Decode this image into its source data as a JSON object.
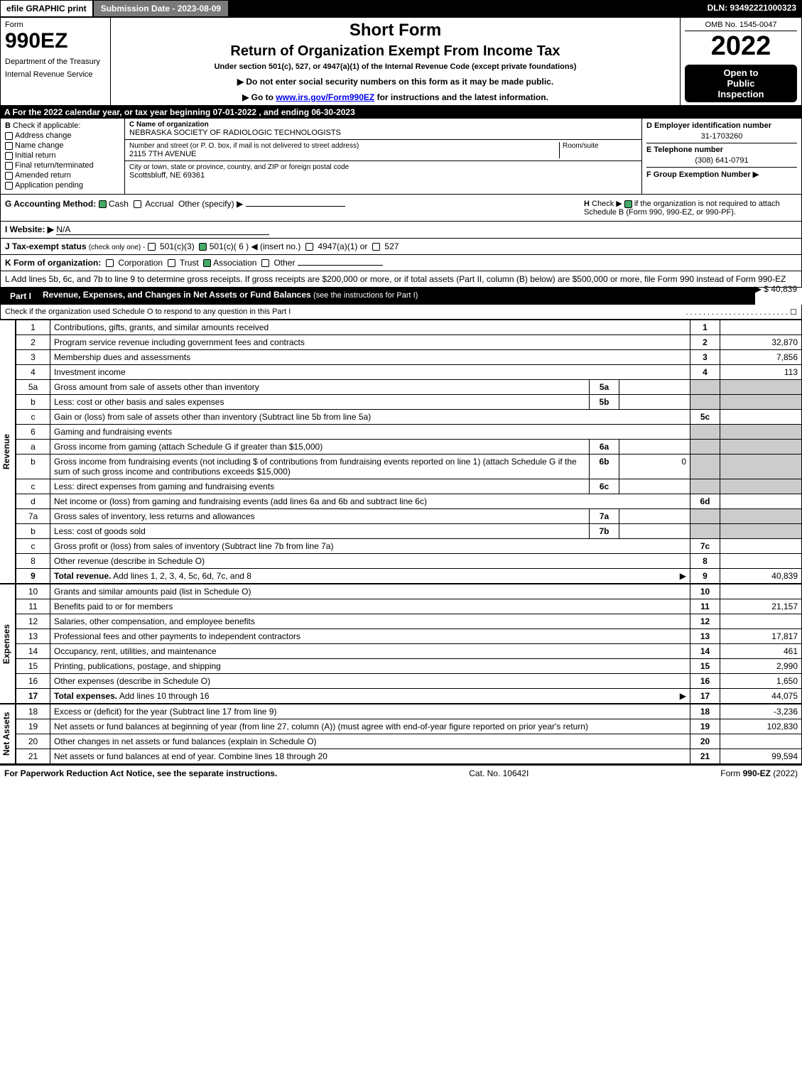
{
  "topbar": {
    "efile": "efile GRAPHIC print",
    "submission": "Submission Date - 2023-08-09",
    "dln": "DLN: 93492221000323"
  },
  "header": {
    "form_label": "Form",
    "form_number": "990EZ",
    "dept1": "Department of the Treasury",
    "dept2": "Internal Revenue Service",
    "short_form": "Short Form",
    "title": "Return of Organization Exempt From Income Tax",
    "under": "Under section 501(c), 527, or 4947(a)(1) of the Internal Revenue Code (except private foundations)",
    "instr1": "▶ Do not enter social security numbers on this form as it may be made public.",
    "instr2_pre": "▶ Go to ",
    "instr2_link": "www.irs.gov/Form990EZ",
    "instr2_post": " for instructions and the latest information.",
    "omb": "OMB No. 1545-0047",
    "year": "2022",
    "open1": "Open to",
    "open2": "Public",
    "open3": "Inspection"
  },
  "section_a": "A  For the 2022 calendar year, or tax year beginning 07-01-2022 , and ending 06-30-2023",
  "col_b": {
    "title": "B",
    "subtitle": "Check if applicable:",
    "items": [
      "Address change",
      "Name change",
      "Initial return",
      "Final return/terminated",
      "Amended return",
      "Application pending"
    ]
  },
  "col_c": {
    "c_label": "C Name of organization",
    "c_name": "NEBRASKA SOCIETY OF RADIOLOGIC TECHNOLOGISTS",
    "street_label": "Number and street (or P. O. box, if mail is not delivered to street address)",
    "street": "2115 7TH AVENUE",
    "room_label": "Room/suite",
    "city_label": "City or town, state or province, country, and ZIP or foreign postal code",
    "city": "Scottsbluff, NE  69361"
  },
  "col_d": {
    "d_label": "D Employer identification number",
    "ein": "31-1703260",
    "e_label": "E Telephone number",
    "phone": "(308) 641-0791",
    "f_label": "F Group Exemption Number ▶"
  },
  "row_g": {
    "g_label": "G Accounting Method:",
    "cash": "Cash",
    "accrual": "Accrual",
    "other": "Other (specify) ▶",
    "h_label": "H",
    "h_text1": "Check ▶",
    "h_text2": "if the organization is not required to attach Schedule B (Form 990, 990-EZ, or 990-PF)."
  },
  "row_i": {
    "label": "I Website: ▶",
    "value": "N/A"
  },
  "row_j": {
    "label": "J Tax-exempt status",
    "sub": "(check only one) -",
    "opt1": "501(c)(3)",
    "opt2": "501(c)( 6 ) ◀ (insert no.)",
    "opt3": "4947(a)(1) or",
    "opt4": "527"
  },
  "row_k": {
    "label": "K Form of organization:",
    "opts": [
      "Corporation",
      "Trust",
      "Association",
      "Other"
    ]
  },
  "row_l": {
    "text": "L Add lines 5b, 6c, and 7b to line 9 to determine gross receipts. If gross receipts are $200,000 or more, or if total assets (Part II, column (B) below) are $500,000 or more, file Form 990 instead of Form 990-EZ",
    "amount": "▶ $ 40,839"
  },
  "part1": {
    "label": "Part I",
    "title": "Revenue, Expenses, and Changes in Net Assets or Fund Balances",
    "sub": "(see the instructions for Part I)",
    "check": "Check if the organization used Schedule O to respond to any question in this Part I",
    "check_end": ". . . . . . . . . . . . . . . . . . . . . . . . ☐"
  },
  "revenue": {
    "side": "Revenue",
    "rows": [
      {
        "n": "1",
        "d": "Contributions, gifts, grants, and similar amounts received",
        "r": "1",
        "v": ""
      },
      {
        "n": "2",
        "d": "Program service revenue including government fees and contracts",
        "r": "2",
        "v": "32,870"
      },
      {
        "n": "3",
        "d": "Membership dues and assessments",
        "r": "3",
        "v": "7,856"
      },
      {
        "n": "4",
        "d": "Investment income",
        "r": "4",
        "v": "113"
      },
      {
        "n": "5a",
        "d": "Gross amount from sale of assets other than inventory",
        "sub": "5a",
        "sv": ""
      },
      {
        "n": "b",
        "d": "Less: cost or other basis and sales expenses",
        "sub": "5b",
        "sv": ""
      },
      {
        "n": "c",
        "d": "Gain or (loss) from sale of assets other than inventory (Subtract line 5b from line 5a)",
        "r": "5c",
        "v": ""
      },
      {
        "n": "6",
        "d": "Gaming and fundraising events"
      },
      {
        "n": "a",
        "d": "Gross income from gaming (attach Schedule G if greater than $15,000)",
        "sub": "6a",
        "sv": ""
      },
      {
        "n": "b",
        "d": "Gross income from fundraising events (not including $                     of contributions from fundraising events reported on line 1) (attach Schedule G if the sum of such gross income and contributions exceeds $15,000)",
        "sub": "6b",
        "sv": "0"
      },
      {
        "n": "c",
        "d": "Less: direct expenses from gaming and fundraising events",
        "sub": "6c",
        "sv": ""
      },
      {
        "n": "d",
        "d": "Net income or (loss) from gaming and fundraising events (add lines 6a and 6b and subtract line 6c)",
        "r": "6d",
        "v": ""
      },
      {
        "n": "7a",
        "d": "Gross sales of inventory, less returns and allowances",
        "sub": "7a",
        "sv": ""
      },
      {
        "n": "b",
        "d": "Less: cost of goods sold",
        "sub": "7b",
        "sv": ""
      },
      {
        "n": "c",
        "d": "Gross profit or (loss) from sales of inventory (Subtract line 7b from line 7a)",
        "r": "7c",
        "v": ""
      },
      {
        "n": "8",
        "d": "Other revenue (describe in Schedule O)",
        "r": "8",
        "v": ""
      },
      {
        "n": "9",
        "d": "Total revenue. Add lines 1, 2, 3, 4, 5c, 6d, 7c, and 8",
        "r": "9",
        "v": "40,839",
        "bold": true,
        "arrow": true
      }
    ]
  },
  "expenses": {
    "side": "Expenses",
    "rows": [
      {
        "n": "10",
        "d": "Grants and similar amounts paid (list in Schedule O)",
        "r": "10",
        "v": ""
      },
      {
        "n": "11",
        "d": "Benefits paid to or for members",
        "r": "11",
        "v": "21,157"
      },
      {
        "n": "12",
        "d": "Salaries, other compensation, and employee benefits",
        "r": "12",
        "v": ""
      },
      {
        "n": "13",
        "d": "Professional fees and other payments to independent contractors",
        "r": "13",
        "v": "17,817"
      },
      {
        "n": "14",
        "d": "Occupancy, rent, utilities, and maintenance",
        "r": "14",
        "v": "461"
      },
      {
        "n": "15",
        "d": "Printing, publications, postage, and shipping",
        "r": "15",
        "v": "2,990"
      },
      {
        "n": "16",
        "d": "Other expenses (describe in Schedule O)",
        "r": "16",
        "v": "1,650"
      },
      {
        "n": "17",
        "d": "Total expenses. Add lines 10 through 16",
        "r": "17",
        "v": "44,075",
        "bold": true,
        "arrow": true
      }
    ]
  },
  "netassets": {
    "side": "Net Assets",
    "rows": [
      {
        "n": "18",
        "d": "Excess or (deficit) for the year (Subtract line 17 from line 9)",
        "r": "18",
        "v": "-3,236"
      },
      {
        "n": "19",
        "d": "Net assets or fund balances at beginning of year (from line 27, column (A)) (must agree with end-of-year figure reported on prior year's return)",
        "r": "19",
        "v": "102,830"
      },
      {
        "n": "20",
        "d": "Other changes in net assets or fund balances (explain in Schedule O)",
        "r": "20",
        "v": ""
      },
      {
        "n": "21",
        "d": "Net assets or fund balances at end of year. Combine lines 18 through 20",
        "r": "21",
        "v": "99,594"
      }
    ]
  },
  "footer": {
    "left": "For Paperwork Reduction Act Notice, see the separate instructions.",
    "center": "Cat. No. 10642I",
    "right_pre": "Form ",
    "right_bold": "990-EZ",
    "right_post": " (2022)"
  }
}
